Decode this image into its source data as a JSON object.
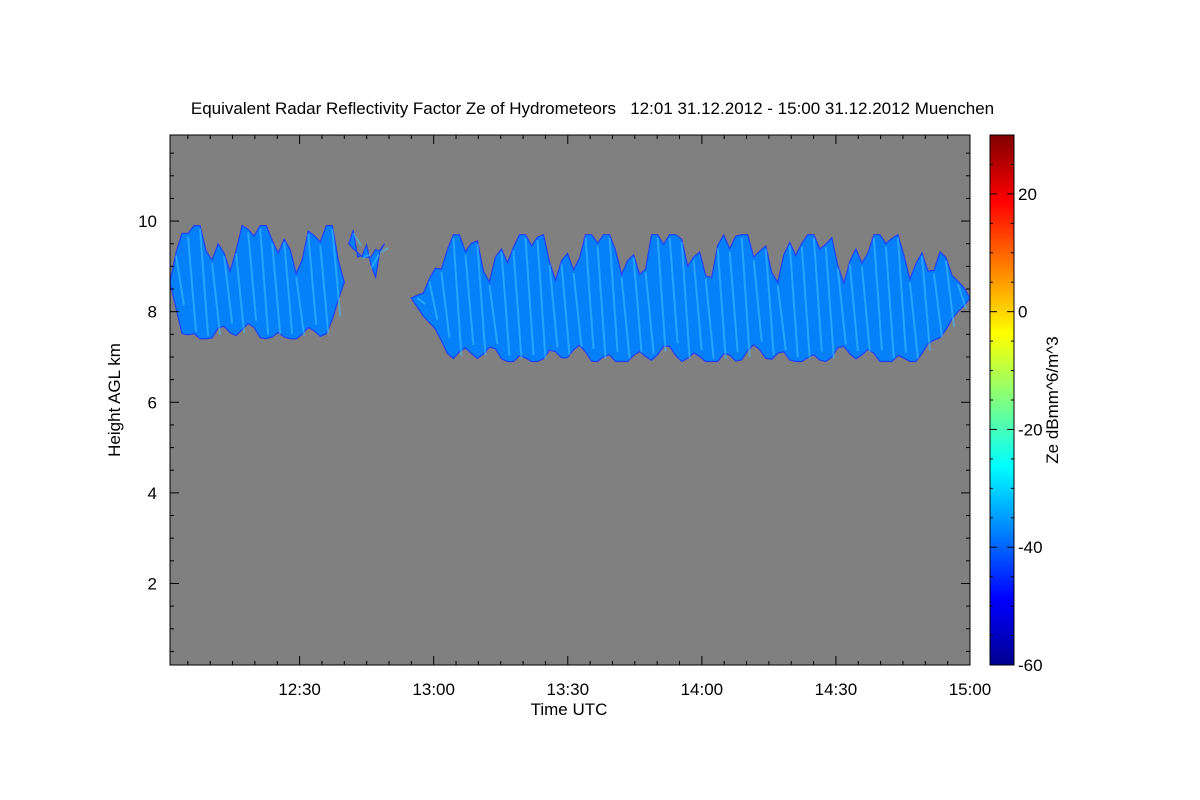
{
  "chart_data": {
    "type": "heatmap",
    "title": "Equivalent Radar Reflectivity Factor Ze of Hydrometeors   12:01 31.12.2012 - 15:00 31.12.2012 Muenchen",
    "xlabel": "Time UTC",
    "ylabel": "Height AGL km",
    "colorbar_label": "Ze dBmm^6/m^3",
    "x_ticks": [
      "12:30",
      "13:00",
      "13:30",
      "14:00",
      "14:30",
      "15:00"
    ],
    "x_tick_minutes": [
      30,
      60,
      90,
      120,
      150,
      180
    ],
    "xlim_minutes": [
      1,
      180
    ],
    "y_ticks": [
      2,
      4,
      6,
      8,
      10
    ],
    "ylim": [
      0.2,
      11.9
    ],
    "colorbar_ticks": [
      20,
      0,
      -20,
      -40,
      -60
    ],
    "colorbar_range": [
      -60,
      30
    ],
    "background_color": "#808080",
    "colormap": [
      "#00008f",
      "#0000ff",
      "#0080ff",
      "#00ffff",
      "#80ff80",
      "#ffff00",
      "#ff8000",
      "#ff0000",
      "#800000"
    ],
    "echo_regions": [
      {
        "name": "cloud-1",
        "t_start": 1,
        "t_end": 40,
        "base_km": 7.4,
        "top_km": 9.9,
        "ze_dbz": -36
      },
      {
        "name": "cloud-2",
        "t_start": 41,
        "t_end": 49,
        "base_km": 9.2,
        "top_km": 9.8,
        "ze_dbz": -38
      },
      {
        "name": "cloud-3",
        "t_start": 55,
        "t_end": 180,
        "base_km": 6.9,
        "top_km": 9.7,
        "ze_dbz": -34
      }
    ]
  }
}
